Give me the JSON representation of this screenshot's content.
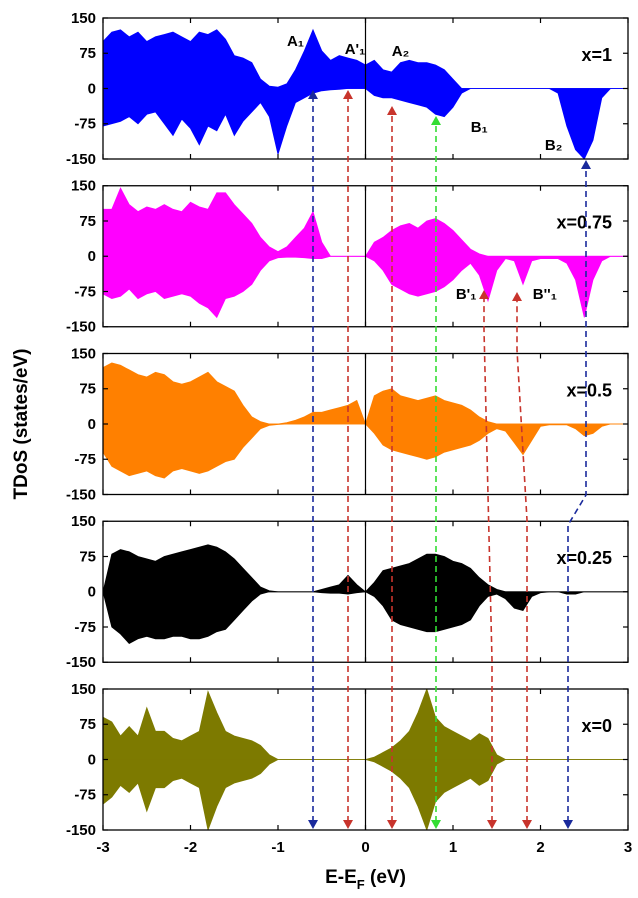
{
  "chart_data": [
    {
      "type": "area",
      "label": "x=1",
      "color": "#0000ff",
      "x": [
        -3,
        -2.9,
        -2.8,
        -2.7,
        -2.6,
        -2.5,
        -2.4,
        -2.3,
        -2.2,
        -2.1,
        -2,
        -1.9,
        -1.8,
        -1.7,
        -1.6,
        -1.5,
        -1.4,
        -1.3,
        -1.2,
        -1.1,
        -1,
        -0.9,
        -0.8,
        -0.7,
        -0.6,
        -0.5,
        -0.4,
        -0.3,
        -0.2,
        -0.1,
        0,
        0.1,
        0.2,
        0.3,
        0.4,
        0.5,
        0.6,
        0.7,
        0.8,
        0.9,
        1,
        1.1,
        1.2,
        1.3,
        1.4,
        1.5,
        1.6,
        1.7,
        1.8,
        1.9,
        2,
        2.1,
        2.2,
        2.3,
        2.4,
        2.5,
        2.6,
        2.7,
        2.8,
        2.9,
        3
      ],
      "series": [
        {
          "values": [
            100,
            120,
            125,
            110,
            120,
            100,
            110,
            115,
            120,
            110,
            100,
            120,
            115,
            125,
            105,
            70,
            65,
            55,
            20,
            5,
            3,
            10,
            40,
            80,
            125,
            80,
            60,
            70,
            65,
            60,
            50,
            60,
            40,
            35,
            55,
            60,
            55,
            55,
            50,
            40,
            20,
            0,
            0,
            0,
            0,
            0,
            0,
            0,
            0,
            0,
            0,
            0,
            0,
            0,
            0,
            0,
            0,
            0,
            0,
            0,
            0
          ]
        },
        {
          "values": [
            -80,
            -75,
            -70,
            -60,
            -75,
            -55,
            -50,
            -75,
            -100,
            -65,
            -85,
            -120,
            -80,
            -90,
            -55,
            -100,
            -70,
            -50,
            -30,
            -60,
            -140,
            -80,
            -30,
            -20,
            -10,
            -5,
            -3,
            -2,
            0,
            0,
            0,
            -15,
            -20,
            -20,
            -25,
            -30,
            -35,
            -40,
            -55,
            -60,
            -40,
            -10,
            0,
            0,
            0,
            0,
            0,
            0,
            0,
            0,
            0,
            0,
            -10,
            -80,
            -130,
            -150,
            -110,
            -20,
            0,
            0,
            0
          ]
        }
      ],
      "annotations": [
        {
          "text": "A₁",
          "x": -0.8,
          "y": 99
        },
        {
          "text": "A'₁",
          "x": -0.12,
          "y": 82
        },
        {
          "text": "A₂",
          "x": 0.4,
          "y": 78
        },
        {
          "text": "B₁",
          "x": 1.3,
          "y": -84
        },
        {
          "text": "B₂",
          "x": 2.15,
          "y": -122
        }
      ],
      "xlim": [
        -3,
        3
      ],
      "xticks": [
        -3,
        -2,
        -1,
        0,
        1,
        2,
        3
      ],
      "ylim": [
        -150,
        150
      ],
      "yticks": [
        -150,
        -75,
        0,
        75,
        150
      ]
    },
    {
      "type": "area",
      "label": "x=0.75",
      "color": "#ff00ff",
      "x": [
        -3,
        -2.9,
        -2.8,
        -2.7,
        -2.6,
        -2.5,
        -2.4,
        -2.3,
        -2.2,
        -2.1,
        -2,
        -1.9,
        -1.8,
        -1.7,
        -1.6,
        -1.5,
        -1.4,
        -1.3,
        -1.2,
        -1.1,
        -1,
        -0.9,
        -0.8,
        -0.7,
        -0.6,
        -0.5,
        -0.4,
        -0.3,
        -0.2,
        -0.1,
        0,
        0.1,
        0.2,
        0.3,
        0.4,
        0.5,
        0.6,
        0.7,
        0.8,
        0.9,
        1,
        1.1,
        1.2,
        1.3,
        1.4,
        1.5,
        1.6,
        1.7,
        1.8,
        1.9,
        2,
        2.1,
        2.2,
        2.3,
        2.4,
        2.5,
        2.6,
        2.7,
        2.8,
        2.9,
        3
      ],
      "series": [
        {
          "values": [
            100,
            100,
            145,
            110,
            95,
            105,
            100,
            110,
            100,
            95,
            115,
            105,
            100,
            135,
            135,
            110,
            90,
            70,
            40,
            20,
            10,
            20,
            40,
            60,
            95,
            30,
            0,
            0,
            0,
            0,
            0,
            30,
            40,
            55,
            65,
            70,
            60,
            75,
            80,
            70,
            55,
            35,
            15,
            5,
            0,
            0,
            0,
            0,
            0,
            0,
            0,
            0,
            0,
            0,
            0,
            0,
            0,
            0,
            0,
            0,
            0
          ]
        },
        {
          "values": [
            -80,
            -90,
            -85,
            -70,
            -90,
            -80,
            -75,
            -90,
            -85,
            -80,
            -85,
            -100,
            -110,
            -130,
            -90,
            -85,
            -75,
            -60,
            -30,
            -10,
            -3,
            -2,
            -2,
            -3,
            -5,
            -5,
            0,
            0,
            0,
            0,
            0,
            -10,
            -30,
            -60,
            -70,
            -80,
            -85,
            -80,
            -75,
            -65,
            -50,
            -30,
            -15,
            -40,
            -95,
            -30,
            -5,
            -10,
            -60,
            -10,
            -5,
            -5,
            -5,
            -15,
            -50,
            -130,
            -50,
            -10,
            0,
            0,
            0
          ]
        }
      ],
      "annotations": [
        {
          "text": "B'₁",
          "x": 1.15,
          "y": -82
        },
        {
          "text": "B''₁",
          "x": 2.05,
          "y": -82
        }
      ],
      "xlim": [
        -3,
        3
      ],
      "xticks": [
        -3,
        -2,
        -1,
        0,
        1,
        2,
        3
      ],
      "ylim": [
        -150,
        150
      ],
      "yticks": [
        -150,
        -75,
        0,
        75,
        150
      ]
    },
    {
      "type": "area",
      "label": "x=0.5",
      "color": "#ff8000",
      "ylabel": "TDoS (states/eV)",
      "x": [
        -3,
        -2.9,
        -2.8,
        -2.7,
        -2.6,
        -2.5,
        -2.4,
        -2.3,
        -2.2,
        -2.1,
        -2,
        -1.9,
        -1.8,
        -1.7,
        -1.6,
        -1.5,
        -1.4,
        -1.3,
        -1.2,
        -1.1,
        -1,
        -0.9,
        -0.8,
        -0.7,
        -0.6,
        -0.5,
        -0.4,
        -0.3,
        -0.2,
        -0.1,
        0,
        0.1,
        0.2,
        0.3,
        0.4,
        0.5,
        0.6,
        0.7,
        0.8,
        0.9,
        1,
        1.1,
        1.2,
        1.3,
        1.4,
        1.5,
        1.6,
        1.7,
        1.8,
        1.9,
        2,
        2.1,
        2.2,
        2.3,
        2.4,
        2.5,
        2.6,
        2.7,
        2.8,
        2.9,
        3
      ],
      "series": [
        {
          "values": [
            120,
            130,
            125,
            115,
            105,
            100,
            110,
            105,
            90,
            85,
            90,
            100,
            110,
            90,
            80,
            70,
            40,
            15,
            5,
            0,
            0,
            3,
            8,
            15,
            25,
            25,
            30,
            35,
            40,
            50,
            0,
            60,
            70,
            75,
            60,
            55,
            50,
            55,
            60,
            50,
            45,
            40,
            30,
            15,
            5,
            0,
            0,
            0,
            0,
            0,
            0,
            0,
            0,
            0,
            0,
            0,
            0,
            0,
            0,
            0,
            0
          ]
        },
        {
          "values": [
            -60,
            -90,
            -100,
            -110,
            -105,
            -100,
            -110,
            -115,
            -100,
            -95,
            -100,
            -105,
            -100,
            -90,
            -80,
            -75,
            -50,
            -30,
            -10,
            -3,
            -1,
            0,
            0,
            0,
            0,
            0,
            0,
            0,
            0,
            0,
            0,
            -20,
            -45,
            -55,
            -60,
            -65,
            -70,
            -75,
            -70,
            -60,
            -55,
            -50,
            -45,
            -35,
            -20,
            -10,
            -15,
            -40,
            -65,
            -35,
            -5,
            -2,
            -2,
            -2,
            -10,
            -25,
            -20,
            -5,
            0,
            0,
            0
          ]
        }
      ],
      "xlim": [
        -3,
        3
      ],
      "xticks": [
        -3,
        -2,
        -1,
        0,
        1,
        2,
        3
      ],
      "ylim": [
        -150,
        150
      ],
      "yticks": [
        -150,
        -75,
        0,
        75,
        150
      ]
    },
    {
      "type": "area",
      "label": "x=0.25",
      "color": "#000000",
      "x": [
        -3,
        -2.9,
        -2.8,
        -2.7,
        -2.6,
        -2.5,
        -2.4,
        -2.3,
        -2.2,
        -2.1,
        -2,
        -1.9,
        -1.8,
        -1.7,
        -1.6,
        -1.5,
        -1.4,
        -1.3,
        -1.2,
        -1.1,
        -1,
        -0.9,
        -0.8,
        -0.7,
        -0.6,
        -0.5,
        -0.4,
        -0.3,
        -0.2,
        -0.1,
        0,
        0.1,
        0.2,
        0.3,
        0.4,
        0.5,
        0.6,
        0.7,
        0.8,
        0.9,
        1,
        1.1,
        1.2,
        1.3,
        1.4,
        1.5,
        1.6,
        1.7,
        1.8,
        1.9,
        2,
        2.1,
        2.2,
        2.3,
        2.4,
        2.5,
        2.6,
        2.7,
        2.8,
        2.9,
        3
      ],
      "series": [
        {
          "values": [
            0,
            80,
            90,
            85,
            75,
            70,
            65,
            75,
            80,
            85,
            90,
            95,
            100,
            95,
            85,
            70,
            50,
            30,
            10,
            2,
            0,
            0,
            0,
            0,
            0,
            5,
            10,
            15,
            35,
            15,
            0,
            20,
            45,
            50,
            55,
            60,
            70,
            80,
            80,
            75,
            65,
            60,
            50,
            30,
            15,
            5,
            0,
            0,
            0,
            0,
            0,
            0,
            0,
            0,
            0,
            0,
            0,
            0,
            0,
            0,
            0
          ]
        },
        {
          "values": [
            0,
            -75,
            -90,
            -110,
            -100,
            -95,
            -100,
            -100,
            -95,
            -95,
            -100,
            -100,
            -95,
            -85,
            -80,
            -60,
            -40,
            -20,
            -5,
            0,
            0,
            0,
            0,
            0,
            0,
            -2,
            -3,
            -3,
            -5,
            -2,
            0,
            -10,
            -30,
            -60,
            -70,
            -75,
            -80,
            -85,
            -85,
            -80,
            -75,
            -70,
            -60,
            -30,
            -10,
            -5,
            -15,
            -35,
            -40,
            -10,
            -2,
            0,
            0,
            -5,
            -5,
            0,
            0,
            0,
            0,
            0,
            0
          ]
        }
      ],
      "xlim": [
        -3,
        3
      ],
      "xticks": [
        -3,
        -2,
        -1,
        0,
        1,
        2,
        3
      ],
      "ylim": [
        -150,
        150
      ],
      "yticks": [
        -150,
        -75,
        0,
        75,
        150
      ]
    },
    {
      "type": "area",
      "label": "x=0",
      "color": "#7d7a00",
      "xlabel": [
        "E-E",
        "F",
        " (eV)"
      ],
      "x": [
        -3,
        -2.9,
        -2.8,
        -2.7,
        -2.6,
        -2.5,
        -2.4,
        -2.3,
        -2.2,
        -2.1,
        -2,
        -1.9,
        -1.8,
        -1.7,
        -1.6,
        -1.5,
        -1.4,
        -1.3,
        -1.2,
        -1.1,
        -1,
        -0.9,
        -0.8,
        -0.7,
        -0.6,
        -0.5,
        -0.4,
        -0.3,
        -0.2,
        -0.1,
        0,
        0.1,
        0.2,
        0.3,
        0.4,
        0.5,
        0.6,
        0.7,
        0.8,
        0.9,
        1,
        1.1,
        1.2,
        1.3,
        1.4,
        1.5,
        1.6,
        1.7,
        1.8,
        1.9,
        2,
        2.1,
        2.2,
        2.3,
        2.4,
        2.5,
        2.6,
        2.7,
        2.8,
        2.9,
        3
      ],
      "series": [
        {
          "values": [
            90,
            80,
            50,
            70,
            50,
            110,
            60,
            60,
            45,
            40,
            50,
            60,
            145,
            100,
            60,
            50,
            45,
            40,
            30,
            10,
            0,
            0,
            0,
            0,
            0,
            0,
            0,
            0,
            0,
            0,
            0,
            5,
            15,
            25,
            40,
            60,
            100,
            150,
            90,
            70,
            60,
            50,
            40,
            55,
            45,
            10,
            0,
            0,
            0,
            0,
            0,
            0,
            0,
            0,
            0,
            0,
            0,
            0,
            0,
            0,
            0
          ]
        },
        {
          "values": [
            -95,
            -80,
            -55,
            -70,
            -50,
            -110,
            -60,
            -60,
            -45,
            -40,
            -50,
            -60,
            -150,
            -100,
            -60,
            -50,
            -45,
            -40,
            -30,
            -10,
            0,
            0,
            0,
            0,
            0,
            0,
            0,
            0,
            0,
            0,
            0,
            -5,
            -15,
            -25,
            -40,
            -60,
            -100,
            -150,
            -90,
            -70,
            -60,
            -50,
            -40,
            -55,
            -45,
            -10,
            0,
            0,
            0,
            0,
            0,
            0,
            0,
            0,
            0,
            0,
            0,
            0,
            0,
            0,
            0
          ]
        }
      ],
      "xlim": [
        -3,
        3
      ],
      "xticks": [
        -3,
        -2,
        -1,
        0,
        1,
        2,
        3
      ],
      "ylim": [
        -150,
        150
      ],
      "yticks": [
        -150,
        -75,
        0,
        75,
        150
      ]
    }
  ]
}
